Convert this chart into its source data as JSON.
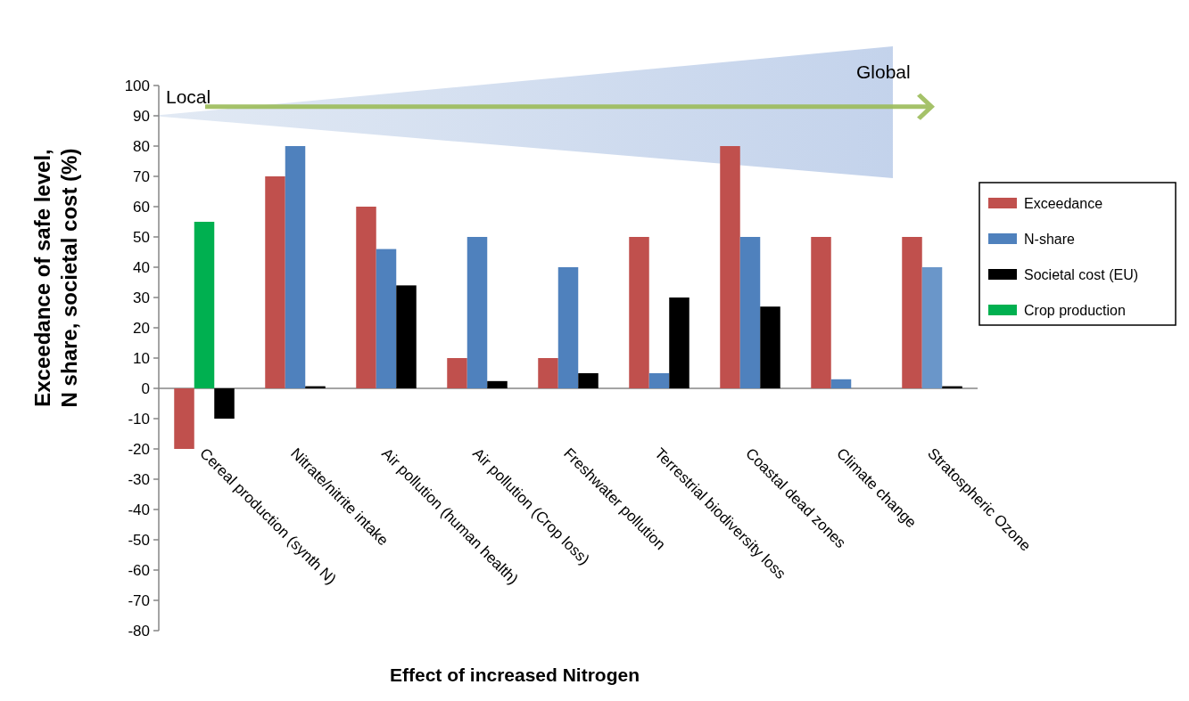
{
  "chart_data": {
    "type": "bar",
    "xlabel": "Effect of increased Nitrogen",
    "ylabel": "Exceedance of safe level, N share, societal cost (%)",
    "categories": [
      "Cereal production (synth N)",
      "Nitrate/nitrite intake",
      "Air pollution (human health)",
      "Air pollution (Crop loss)",
      "Freshwater pollution",
      "Terrestrial biodiversity loss",
      "Coastal dead zones",
      "Climate change",
      "Stratospheric Ozone"
    ],
    "series": [
      {
        "name": "Exceedance",
        "color": "#c0504d",
        "values": [
          -20,
          70,
          60,
          10,
          10,
          50,
          80,
          50,
          50
        ]
      },
      {
        "name": "N-share",
        "color": "#4f81bd",
        "colors": [
          null,
          "#4f81bd",
          "#4f81bd",
          "#4f81bd",
          "#4f81bd",
          "#4f81bd",
          "#4f81bd",
          "#4f81bd",
          "#6a96c9"
        ],
        "values": [
          null,
          80,
          46,
          50,
          40,
          5,
          50,
          3,
          40
        ]
      },
      {
        "name": "Societal cost (EU)",
        "color": "#000000",
        "values": [
          -10,
          0.7,
          34,
          2.4,
          5,
          30,
          27,
          null,
          0.7
        ]
      },
      {
        "name": "Crop production",
        "color": "#00b050",
        "values": [
          55,
          null,
          null,
          null,
          null,
          null,
          null,
          null,
          null
        ]
      }
    ],
    "ylim": [
      -80,
      100
    ],
    "yticks": [
      -80,
      -70,
      -60,
      -50,
      -40,
      -30,
      -20,
      -10,
      0,
      10,
      20,
      30,
      40,
      50,
      60,
      70,
      80,
      90,
      100
    ],
    "legend": "right",
    "annotations": [
      "Local",
      "Global"
    ]
  }
}
